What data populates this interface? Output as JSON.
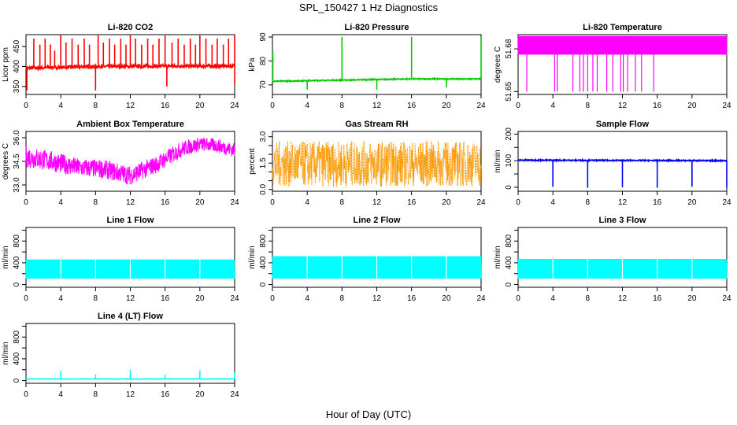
{
  "figure": {
    "title": "SPL_150427  1 Hz Diagnostics",
    "xlabel": "Hour of Day (UTC)"
  },
  "chart_data": [
    {
      "type": "line",
      "title": "Li-820 CO2",
      "xlabel": "",
      "ylabel": "Licor ppm",
      "color": "#ff0000",
      "xlim": [
        0,
        24
      ],
      "ylim": [
        330,
        480
      ],
      "xticks": [
        0,
        4,
        8,
        12,
        16,
        20,
        24
      ],
      "yticks": [
        350,
        400,
        450
      ],
      "pattern": {
        "style": "spiky",
        "base": [
          [
            0,
            396
          ],
          [
            8,
            400
          ],
          [
            16,
            401
          ],
          [
            24,
            401
          ]
        ],
        "noise": 4,
        "spikes": [
          [
            0.1,
            340
          ],
          [
            0.9,
            470
          ],
          [
            1.6,
            455
          ],
          [
            2.2,
            470
          ],
          [
            2.8,
            455
          ],
          [
            3.3,
            440
          ],
          [
            4.0,
            478
          ],
          [
            4.6,
            460
          ],
          [
            5.3,
            470
          ],
          [
            6.0,
            455
          ],
          [
            6.7,
            470
          ],
          [
            7.3,
            455
          ],
          [
            8.0,
            340
          ],
          [
            8.3,
            478
          ],
          [
            8.9,
            460
          ],
          [
            9.6,
            470
          ],
          [
            10.2,
            455
          ],
          [
            10.9,
            470
          ],
          [
            11.5,
            455
          ],
          [
            12.0,
            478
          ],
          [
            12.6,
            470
          ],
          [
            13.3,
            455
          ],
          [
            14.0,
            470
          ],
          [
            14.6,
            455
          ],
          [
            15.3,
            470
          ],
          [
            16.0,
            478
          ],
          [
            16.2,
            350
          ],
          [
            16.8,
            460
          ],
          [
            17.5,
            470
          ],
          [
            18.2,
            455
          ],
          [
            18.9,
            470
          ],
          [
            19.5,
            455
          ],
          [
            20.0,
            478
          ],
          [
            20.7,
            470
          ],
          [
            21.4,
            455
          ],
          [
            22.0,
            470
          ],
          [
            22.7,
            455
          ],
          [
            23.3,
            470
          ],
          [
            24.0,
            478
          ],
          [
            24.0,
            355
          ]
        ]
      }
    },
    {
      "type": "line",
      "title": "Li-820 Pressure",
      "xlabel": "",
      "ylabel": "kPa",
      "color": "#00cc00",
      "xlim": [
        0,
        24
      ],
      "ylim": [
        66,
        91
      ],
      "xticks": [
        0,
        4,
        8,
        12,
        16,
        20,
        24
      ],
      "yticks": [
        70,
        80,
        90
      ],
      "pattern": {
        "style": "steps",
        "base": [
          [
            0,
            71.5
          ],
          [
            8,
            72
          ],
          [
            16,
            72.5
          ],
          [
            24,
            72.5
          ]
        ],
        "noise": 0.2,
        "spikes": [
          [
            0.05,
            84
          ],
          [
            4.0,
            68
          ],
          [
            8.0,
            90
          ],
          [
            12.0,
            68
          ],
          [
            16.0,
            90
          ],
          [
            20.0,
            69
          ],
          [
            24.0,
            90
          ]
        ]
      }
    },
    {
      "type": "line",
      "title": "Li-820 Temperature",
      "xlabel": "",
      "ylabel": "degrees C",
      "color": "#ff00ff",
      "xlim": [
        0,
        24
      ],
      "ylim": [
        51.648,
        51.69
      ],
      "xticks": [
        0,
        4,
        8,
        12,
        16,
        20,
        24
      ],
      "yticks": [
        51.65,
        51.68
      ],
      "ytick_labels": [
        "51.65",
        "51.68"
      ],
      "pattern": {
        "style": "band",
        "low": 51.676,
        "high": 51.689,
        "dropouts": [
          [
            1.0,
            51.65
          ],
          [
            4.2,
            51.65
          ],
          [
            4.5,
            51.65
          ],
          [
            6.3,
            51.65
          ],
          [
            7.1,
            51.65
          ],
          [
            7.5,
            51.65
          ],
          [
            8.0,
            51.65
          ],
          [
            8.6,
            51.65
          ],
          [
            9.1,
            51.65
          ],
          [
            10.2,
            51.65
          ],
          [
            10.9,
            51.65
          ],
          [
            11.8,
            51.65
          ],
          [
            12.1,
            51.65
          ],
          [
            12.6,
            51.65
          ],
          [
            13.5,
            51.65
          ],
          [
            14.2,
            51.65
          ],
          [
            15.6,
            51.65
          ]
        ]
      }
    },
    {
      "type": "line",
      "title": "Ambient Box Temperature",
      "xlabel": "",
      "ylabel": "degrees C",
      "color": "#ff00ff",
      "xlim": [
        0,
        24
      ],
      "ylim": [
        32.6,
        36.4
      ],
      "xticks": [
        0,
        4,
        8,
        12,
        16,
        20,
        24
      ],
      "yticks": [
        33.0,
        34.5,
        36.0
      ],
      "ytick_labels": [
        "33.0",
        "34.5",
        "36.0"
      ],
      "pattern": {
        "style": "envelope",
        "mid": [
          [
            0,
            34.8
          ],
          [
            3,
            34.5
          ],
          [
            6,
            34.1
          ],
          [
            9,
            34.0
          ],
          [
            12,
            33.6
          ],
          [
            15,
            34.3
          ],
          [
            18,
            35.3
          ],
          [
            20,
            35.6
          ],
          [
            22,
            35.5
          ],
          [
            24,
            35.2
          ]
        ],
        "halfwidth": [
          [
            0,
            0.7
          ],
          [
            6,
            0.6
          ],
          [
            12,
            0.6
          ],
          [
            16,
            0.55
          ],
          [
            20,
            0.45
          ],
          [
            24,
            0.45
          ]
        ]
      }
    },
    {
      "type": "line",
      "title": "Gas Stream RH",
      "xlabel": "",
      "ylabel": "percent",
      "color": "#ff9900",
      "xlim": [
        0,
        24
      ],
      "ylim": [
        -0.1,
        3.3
      ],
      "xticks": [
        0,
        4,
        8,
        12,
        16,
        20,
        24
      ],
      "yticks": [
        0.0,
        1.5,
        3.0
      ],
      "ytick_labels": [
        "0.0",
        "1.5",
        "3.0"
      ],
      "extra_yticks": [
        0.5,
        1.0,
        2.0,
        2.5
      ],
      "pattern": {
        "style": "envelope",
        "mid": [
          [
            0,
            1.45
          ],
          [
            24,
            1.45
          ]
        ],
        "halfwidth": [
          [
            0,
            1.3
          ],
          [
            24,
            1.3
          ]
        ],
        "texture": "dotted"
      }
    },
    {
      "type": "line",
      "title": "Sample Flow",
      "xlabel": "",
      "ylabel": "ml/min",
      "color": "#0000ff",
      "xlim": [
        0,
        24
      ],
      "ylim": [
        -15,
        210
      ],
      "xticks": [
        0,
        4,
        8,
        12,
        16,
        20,
        24
      ],
      "yticks": [
        0,
        100,
        200
      ],
      "extra_yticks": [
        50,
        150
      ],
      "pattern": {
        "style": "flat",
        "base": [
          [
            0,
            102
          ],
          [
            24,
            100
          ]
        ],
        "noise": 2,
        "spikes": [
          [
            4.0,
            2
          ],
          [
            8.0,
            -2
          ],
          [
            12.0,
            0
          ],
          [
            16.0,
            -2
          ],
          [
            20.0,
            2
          ],
          [
            24.0,
            -2
          ]
        ]
      }
    },
    {
      "type": "line",
      "title": "Line 1 Flow",
      "xlabel": "",
      "ylabel": "ml/min",
      "color": "#00ffff",
      "xlim": [
        0,
        24
      ],
      "ylim": [
        -50,
        1050
      ],
      "xticks": [
        0,
        4,
        8,
        12,
        16,
        20,
        24
      ],
      "yticks": [
        0,
        400,
        800
      ],
      "extra_yticks": [
        200,
        600,
        1000
      ],
      "pattern": {
        "style": "band",
        "low": 110,
        "high": 460,
        "gaps": [
          4.0,
          8.0,
          12.0,
          16.0,
          20.0
        ]
      }
    },
    {
      "type": "line",
      "title": "Line 2 Flow",
      "xlabel": "",
      "ylabel": "ml/min",
      "color": "#00ffff",
      "xlim": [
        0,
        24
      ],
      "ylim": [
        -50,
        1050
      ],
      "xticks": [
        0,
        4,
        8,
        12,
        16,
        20,
        24
      ],
      "yticks": [
        0,
        400,
        800
      ],
      "extra_yticks": [
        200,
        600,
        1000
      ],
      "pattern": {
        "style": "band",
        "low": 110,
        "high": 520,
        "gaps": [
          4.0,
          8.0,
          12.0,
          16.0,
          20.0
        ]
      }
    },
    {
      "type": "line",
      "title": "Line 3 Flow",
      "xlabel": "",
      "ylabel": "ml/min",
      "color": "#00ffff",
      "xlim": [
        0,
        24
      ],
      "ylim": [
        -50,
        1050
      ],
      "xticks": [
        0,
        4,
        8,
        12,
        16,
        20,
        24
      ],
      "yticks": [
        0,
        400,
        800
      ],
      "extra_yticks": [
        200,
        600,
        1000
      ],
      "pattern": {
        "style": "band",
        "low": 110,
        "high": 470,
        "gaps": [
          4.0,
          8.0,
          12.0,
          16.0,
          20.0
        ]
      }
    },
    {
      "type": "line",
      "title": "Line 4 (LT) Flow",
      "xlabel": "",
      "ylabel": "ml/min",
      "color": "#00ffff",
      "xlim": [
        0,
        24
      ],
      "ylim": [
        -50,
        1050
      ],
      "xticks": [
        0,
        4,
        8,
        12,
        16,
        20,
        24
      ],
      "yticks": [
        0,
        400,
        800
      ],
      "extra_yticks": [
        200,
        600,
        1000
      ],
      "pattern": {
        "style": "flat",
        "base": [
          [
            0,
            30
          ],
          [
            24,
            30
          ]
        ],
        "noise": 3,
        "spikes": [
          [
            4.0,
            180
          ],
          [
            8.0,
            110
          ],
          [
            12.0,
            200
          ],
          [
            16.0,
            110
          ],
          [
            20.0,
            180
          ],
          [
            24.0,
            150
          ]
        ]
      }
    }
  ]
}
